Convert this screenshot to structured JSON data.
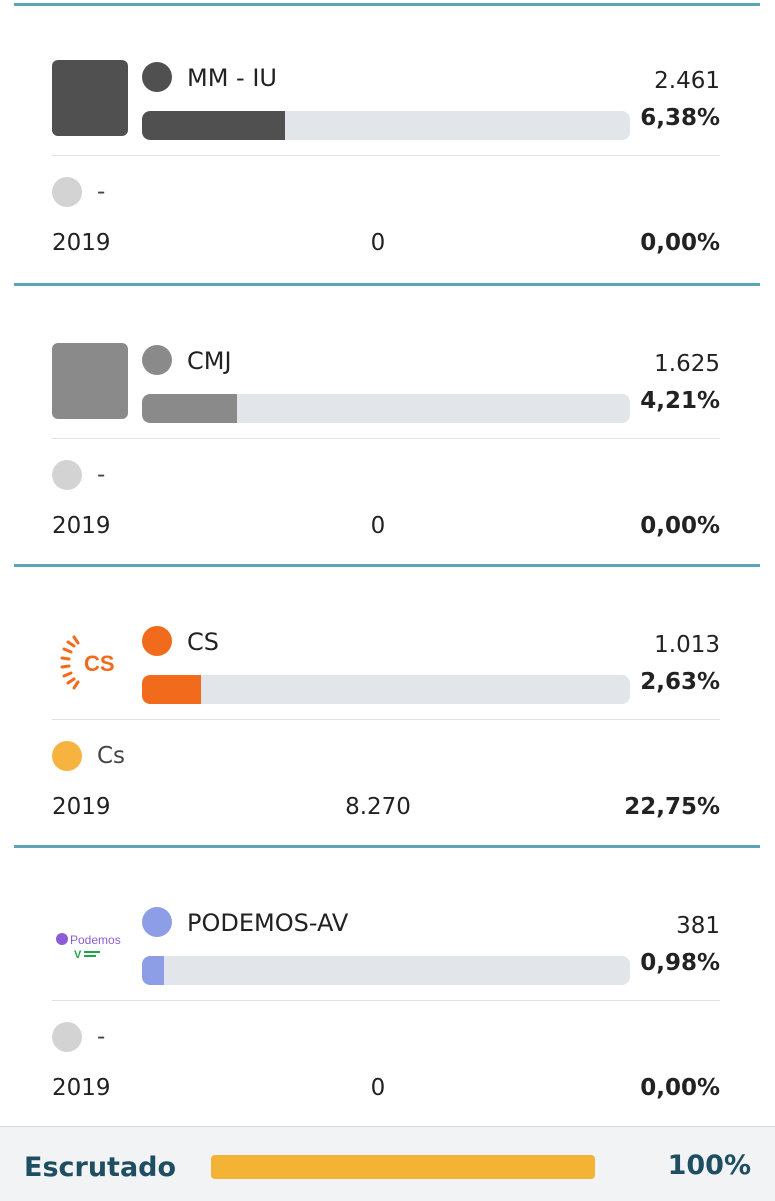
{
  "parties": [
    {
      "name": "MM - IU",
      "votes": "2.461",
      "pct": "6,38%",
      "share": 0.0638,
      "color": "#505050",
      "logo": "dark-gray-square",
      "prev": {
        "name": "-",
        "year": "2019",
        "votes": "0",
        "pct": "0,00%",
        "color": "#d3d3d3"
      }
    },
    {
      "name": "CMJ",
      "votes": "1.625",
      "pct": "4,21%",
      "share": 0.0421,
      "color": "#8a8a8a",
      "logo": "gray-square",
      "prev": {
        "name": "-",
        "year": "2019",
        "votes": "0",
        "pct": "0,00%",
        "color": "#d3d3d3"
      }
    },
    {
      "name": "CS",
      "votes": "1.013",
      "pct": "2,63%",
      "share": 0.0263,
      "color": "#f26a1b",
      "logo": "cs-logo",
      "logo_text": "CS",
      "prev": {
        "name": "Cs",
        "year": "2019",
        "votes": "8.270",
        "pct": "22,75%",
        "color": "#f7b340"
      }
    },
    {
      "name": "PODEMOS-AV",
      "votes": "381",
      "pct": "0,98%",
      "share": 0.0098,
      "color": "#8d9ee6",
      "logo": "podemos-logo",
      "logo_text": "Podemos",
      "prev": {
        "name": "-",
        "year": "2019",
        "votes": "0",
        "pct": "0,00%",
        "color": "#d3d3d3"
      }
    }
  ],
  "footer": {
    "label": "Escrutado",
    "pct": "100%",
    "progress": 1.0,
    "progress_color": "#f5b335"
  }
}
